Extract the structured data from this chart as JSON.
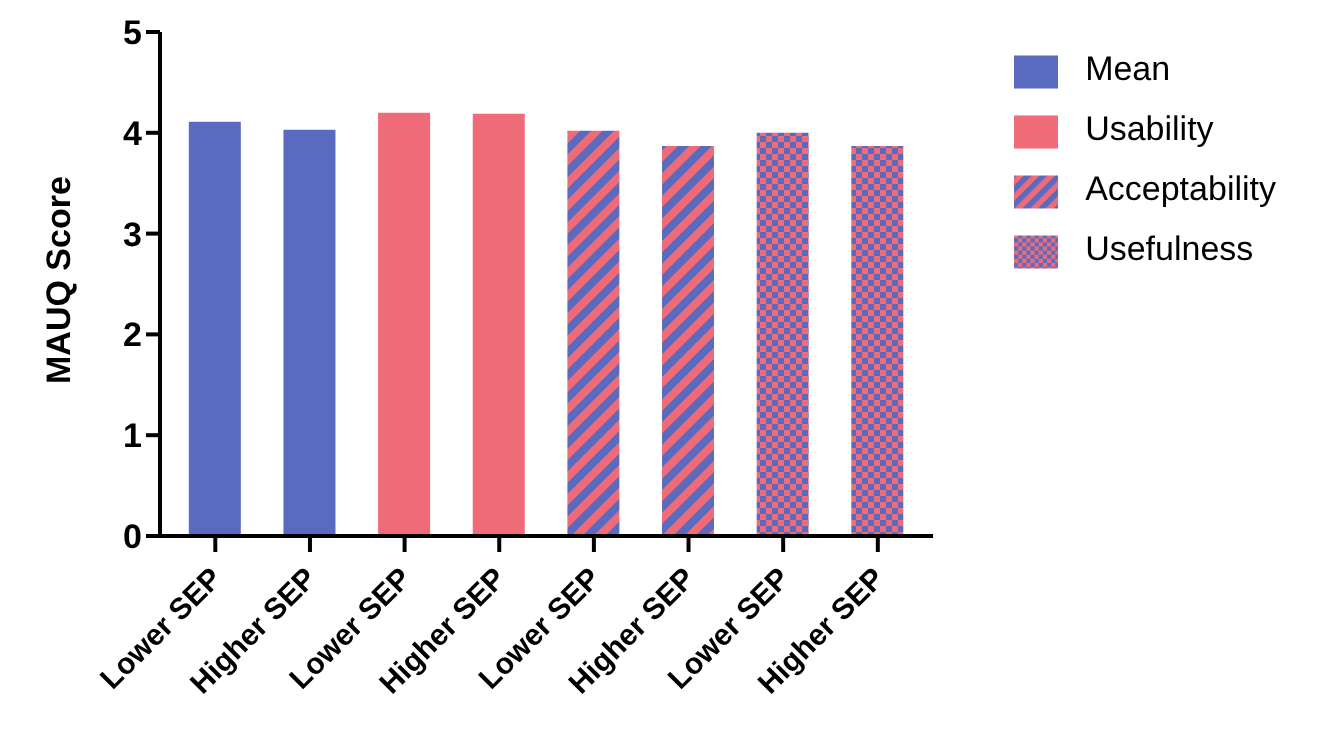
{
  "chart_data": {
    "type": "bar",
    "ylabel": "MAUQ Score",
    "categories": [
      "Lower SEP",
      "Higher SEP",
      "Lower SEP",
      "Higher SEP",
      "Lower SEP",
      "Higher SEP",
      "Lower SEP",
      "Higher SEP"
    ],
    "series": [
      {
        "name": "Mean",
        "color": "#5a6bbf",
        "values": [
          4.11,
          4.03,
          null,
          null,
          null,
          null,
          null,
          null
        ]
      },
      {
        "name": "Usability",
        "color": "#ee6b77",
        "values": [
          null,
          null,
          4.2,
          4.19,
          null,
          null,
          null,
          null
        ]
      },
      {
        "name": "Acceptability",
        "color": "#ee6b77",
        "values": [
          null,
          null,
          null,
          null,
          4.02,
          3.87,
          null,
          null
        ]
      },
      {
        "name": "Usefulness",
        "color": "#ee6b77",
        "values": [
          null,
          null,
          null,
          null,
          null,
          null,
          4.0,
          3.87
        ]
      }
    ],
    "ylim": [
      0,
      5
    ],
    "yticks": [
      0,
      1,
      2,
      3,
      4,
      5
    ],
    "grid": false,
    "legend": "top right"
  }
}
